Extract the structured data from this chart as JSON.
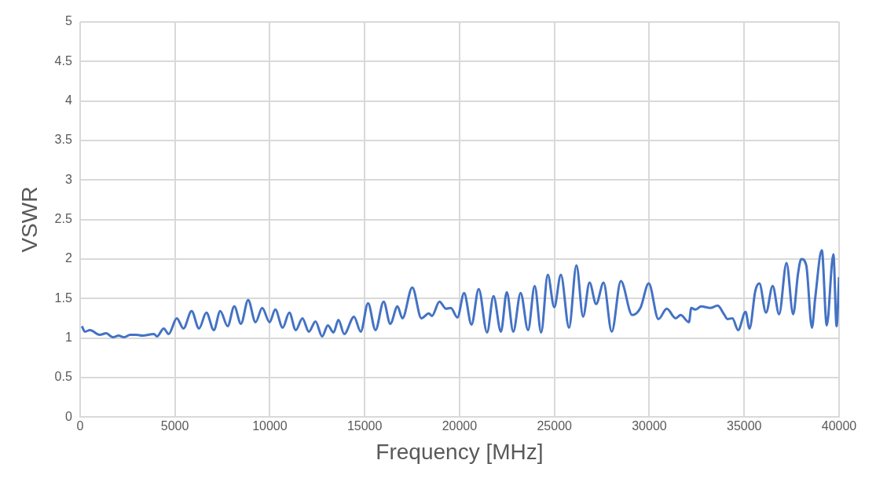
{
  "chart_data": {
    "type": "line",
    "xlabel": "Frequency [MHz]",
    "ylabel": "VSWR",
    "x": [
      100,
      260,
      520,
      1040,
      1380,
      1730,
      2030,
      2330,
      2640,
      2980,
      3290,
      3890,
      4060,
      4410,
      4670,
      5100,
      5450,
      5880,
      6270,
      6660,
      7050,
      7390,
      7780,
      8130,
      8480,
      8860,
      9250,
      9600,
      9990,
      10290,
      10680,
      11030,
      11370,
      11720,
      12060,
      12410,
      12760,
      13060,
      13360,
      13620,
      13920,
      14440,
      14790,
      15180,
      15570,
      16000,
      16350,
      16730,
      16990,
      17510,
      17990,
      18380,
      18550,
      18940,
      19290,
      19540,
      19890,
      20240,
      20630,
      21010,
      21450,
      21790,
      22180,
      22490,
      22830,
      23220,
      23610,
      23960,
      24300,
      24650,
      24990,
      25340,
      25770,
      26160,
      26510,
      26850,
      27200,
      27590,
      28020,
      28500,
      29100,
      29530,
      29970,
      30480,
      30920,
      31390,
      31650,
      32090,
      32210,
      32430,
      32730,
      33210,
      33600,
      33940,
      34120,
      34380,
      34680,
      35070,
      35280,
      35590,
      35800,
      36150,
      36500,
      36840,
      37230,
      37580,
      37840,
      38010,
      38270,
      38570,
      38740,
      39090,
      39350,
      39700,
      39870,
      40000
    ],
    "series": [
      {
        "color": "#4472c4",
        "values": [
          1.15,
          1.08,
          1.1,
          1.04,
          1.06,
          1.01,
          1.03,
          1.01,
          1.04,
          1.04,
          1.03,
          1.05,
          1.02,
          1.12,
          1.05,
          1.25,
          1.12,
          1.34,
          1.12,
          1.32,
          1.1,
          1.34,
          1.15,
          1.4,
          1.18,
          1.48,
          1.2,
          1.38,
          1.2,
          1.36,
          1.13,
          1.32,
          1.1,
          1.25,
          1.08,
          1.21,
          1.02,
          1.16,
          1.07,
          1.23,
          1.05,
          1.27,
          1.08,
          1.44,
          1.1,
          1.46,
          1.18,
          1.4,
          1.25,
          1.64,
          1.25,
          1.31,
          1.28,
          1.46,
          1.37,
          1.38,
          1.26,
          1.57,
          1.17,
          1.62,
          1.07,
          1.53,
          1.08,
          1.58,
          1.08,
          1.57,
          1.1,
          1.66,
          1.07,
          1.8,
          1.39,
          1.8,
          1.13,
          1.92,
          1.27,
          1.7,
          1.43,
          1.7,
          1.08,
          1.72,
          1.29,
          1.38,
          1.69,
          1.24,
          1.37,
          1.25,
          1.29,
          1.2,
          1.38,
          1.36,
          1.4,
          1.38,
          1.41,
          1.3,
          1.24,
          1.25,
          1.1,
          1.33,
          1.12,
          1.6,
          1.69,
          1.32,
          1.66,
          1.3,
          1.95,
          1.3,
          1.82,
          2.0,
          1.92,
          1.13,
          1.5,
          2.11,
          1.16,
          2.06,
          1.15,
          1.77
        ]
      }
    ],
    "xlim": [
      0,
      40000
    ],
    "xticks": [
      0,
      5000,
      10000,
      15000,
      20000,
      25000,
      30000,
      35000,
      40000
    ],
    "ylim": [
      0,
      5
    ],
    "yticks": [
      0,
      0.5,
      1,
      1.5,
      2,
      2.5,
      3,
      3.5,
      4,
      4.5,
      5
    ],
    "grid": true,
    "legend": false,
    "marker": "none",
    "line_style": "solid"
  }
}
